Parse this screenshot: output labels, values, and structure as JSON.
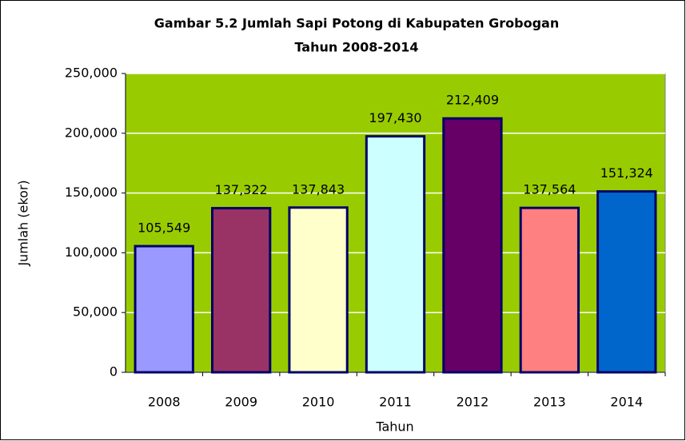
{
  "chart_data": {
    "type": "bar",
    "title": "Gambar 5.2 Jumlah Sapi Potong di Kabupaten Grobogan",
    "subtitle": "Tahun 2008-2014",
    "x_label": "Tahun",
    "y_label": "Jumlah (ekor)",
    "categories": [
      "2008",
      "2009",
      "2010",
      "2011",
      "2012",
      "2013",
      "2014"
    ],
    "values": [
      105549,
      137322,
      137843,
      197430,
      212409,
      137564,
      151324
    ],
    "value_labels": [
      "105,549",
      "137,322",
      "137,843",
      "197,430",
      "212,409",
      "137,564",
      "151,324"
    ],
    "colors": [
      "#9999ff",
      "#993366",
      "#ffffcc",
      "#ccffff",
      "#660066",
      "#ff8080",
      "#0066cc"
    ],
    "background": "#99cc00",
    "ylim": [
      0,
      250000
    ],
    "yticks": [
      0,
      {
        "value": 50000,
        "label": "50,000"
      },
      {
        "value": 100000,
        "label": "100,000"
      },
      {
        "value": 150000,
        "label": "150,000"
      },
      {
        "value": 200000,
        "label": "200,000"
      },
      {
        "value": 250000,
        "label": "250,000"
      }
    ],
    "grid": true
  }
}
